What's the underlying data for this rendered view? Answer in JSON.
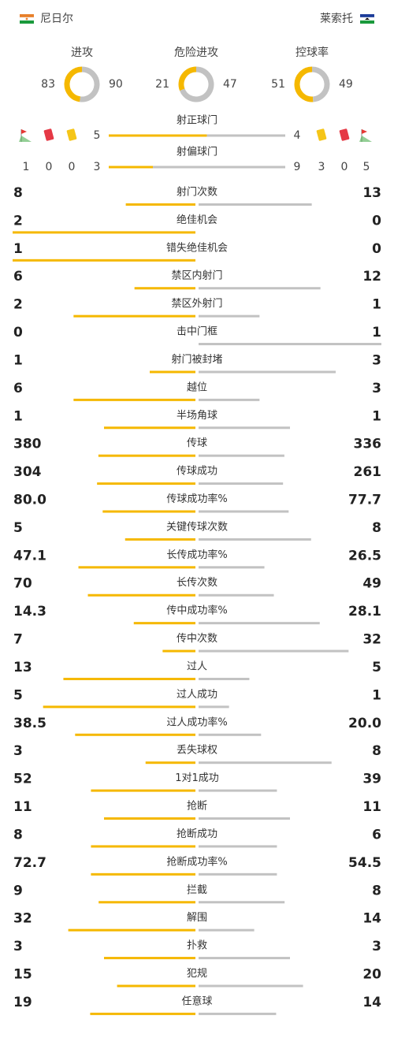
{
  "header": {
    "home": "尼日尔",
    "away": "莱索托"
  },
  "donuts": [
    {
      "label": "进攻",
      "home": 83,
      "away": 90
    },
    {
      "label": "危险进攻",
      "home": 21,
      "away": 47
    },
    {
      "label": "控球率",
      "home": 51,
      "away": 49
    }
  ],
  "discipline": {
    "home": {
      "corners": 1,
      "red": 0,
      "yellow": 0
    },
    "away": {
      "yellow": 3,
      "red": 0,
      "corners": 5
    }
  },
  "shots": [
    {
      "label": "射正球门",
      "home": 5,
      "away": 4
    },
    {
      "label": "射偏球门",
      "home": 3,
      "away": 9
    }
  ],
  "stats": [
    {
      "label": "射门次数",
      "home": 8,
      "away": 13
    },
    {
      "label": "绝佳机会",
      "home": 2,
      "away": 0
    },
    {
      "label": "错失绝佳机会",
      "home": 1,
      "away": 0
    },
    {
      "label": "禁区内射门",
      "home": 6,
      "away": 12
    },
    {
      "label": "禁区外射门",
      "home": 2,
      "away": 1
    },
    {
      "label": "击中门框",
      "home": 0,
      "away": 1
    },
    {
      "label": "射门被封堵",
      "home": 1,
      "away": 3
    },
    {
      "label": "越位",
      "home": 6,
      "away": 3
    },
    {
      "label": "半场角球",
      "home": 1,
      "away": 1
    },
    {
      "label": "传球",
      "home": 380,
      "away": 336
    },
    {
      "label": "传球成功",
      "home": 304,
      "away": 261
    },
    {
      "label": "传球成功率%",
      "home": 80.0,
      "home_text": "80.0",
      "away": 77.7
    },
    {
      "label": "关键传球次数",
      "home": 5,
      "away": 8
    },
    {
      "label": "长传成功率%",
      "home": 47.1,
      "away": 26.5
    },
    {
      "label": "长传次数",
      "home": 70,
      "away": 49
    },
    {
      "label": "传中成功率%",
      "home": 14.3,
      "away": 28.1
    },
    {
      "label": "传中次数",
      "home": 7,
      "away": 32
    },
    {
      "label": "过人",
      "home": 13,
      "away": 5
    },
    {
      "label": "过人成功",
      "home": 5,
      "away": 1
    },
    {
      "label": "过人成功率%",
      "home": 38.5,
      "away": 20.0,
      "away_text": "20.0"
    },
    {
      "label": "丢失球权",
      "home": 3,
      "away": 8
    },
    {
      "label": "1对1成功",
      "home": 52,
      "away": 39
    },
    {
      "label": "抢断",
      "home": 11,
      "away": 11
    },
    {
      "label": "抢断成功",
      "home": 8,
      "away": 6
    },
    {
      "label": "抢断成功率%",
      "home": 72.7,
      "away": 54.5
    },
    {
      "label": "拦截",
      "home": 9,
      "away": 8
    },
    {
      "label": "解围",
      "home": 32,
      "away": 14
    },
    {
      "label": "扑救",
      "home": 3,
      "away": 3
    },
    {
      "label": "犯规",
      "home": 15,
      "away": 20
    },
    {
      "label": "任意球",
      "home": 19,
      "away": 14
    }
  ]
}
